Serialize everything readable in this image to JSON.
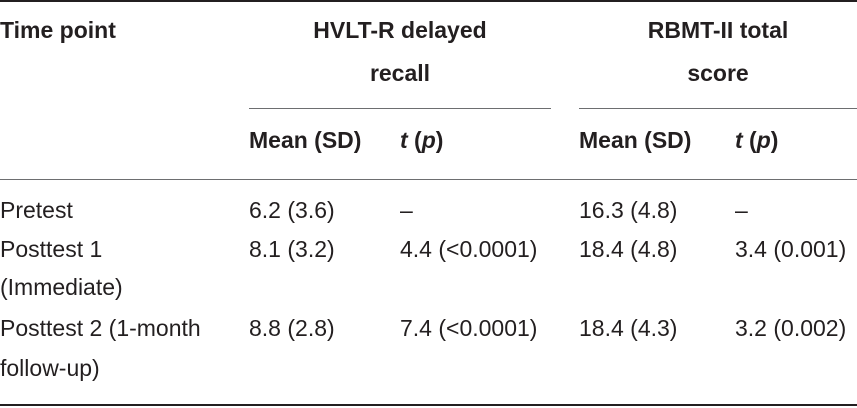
{
  "table": {
    "header": {
      "time_point": "Time point",
      "group1_line1": "HVLT-R delayed",
      "group1_line2": "recall",
      "group2_line1": "RBMT-II total",
      "group2_line2": "score",
      "mean_sd_1": "Mean (SD)",
      "t_p_1_t": "t",
      "t_p_1_open": " (",
      "t_p_1_p": "p",
      "t_p_1_close": ")",
      "mean_sd_2": "Mean (SD)",
      "t_p_2_t": "t",
      "t_p_2_open": " (",
      "t_p_2_p": "p",
      "t_p_2_close": ")"
    },
    "rows": [
      {
        "time_point_line1": "Pretest",
        "time_point_line2": "",
        "hvlt_mean": "6.2 (3.6)",
        "hvlt_t": "–",
        "rbmt_mean": "16.3 (4.8)",
        "rbmt_t": "–"
      },
      {
        "time_point_line1": "Posttest 1",
        "time_point_line2": "(Immediate)",
        "hvlt_mean": "8.1 (3.2)",
        "hvlt_t": "4.4 (<0.0001)",
        "rbmt_mean": "18.4 (4.8)",
        "rbmt_t": "3.4 (0.001)"
      },
      {
        "time_point_line1": "Posttest 2 (1-month",
        "time_point_line2": "follow-up)",
        "hvlt_mean": "8.8 (2.8)",
        "hvlt_t": "7.4 (<0.0001)",
        "rbmt_mean": "18.4 (4.3)",
        "rbmt_t": "3.2 (0.002)"
      }
    ]
  }
}
